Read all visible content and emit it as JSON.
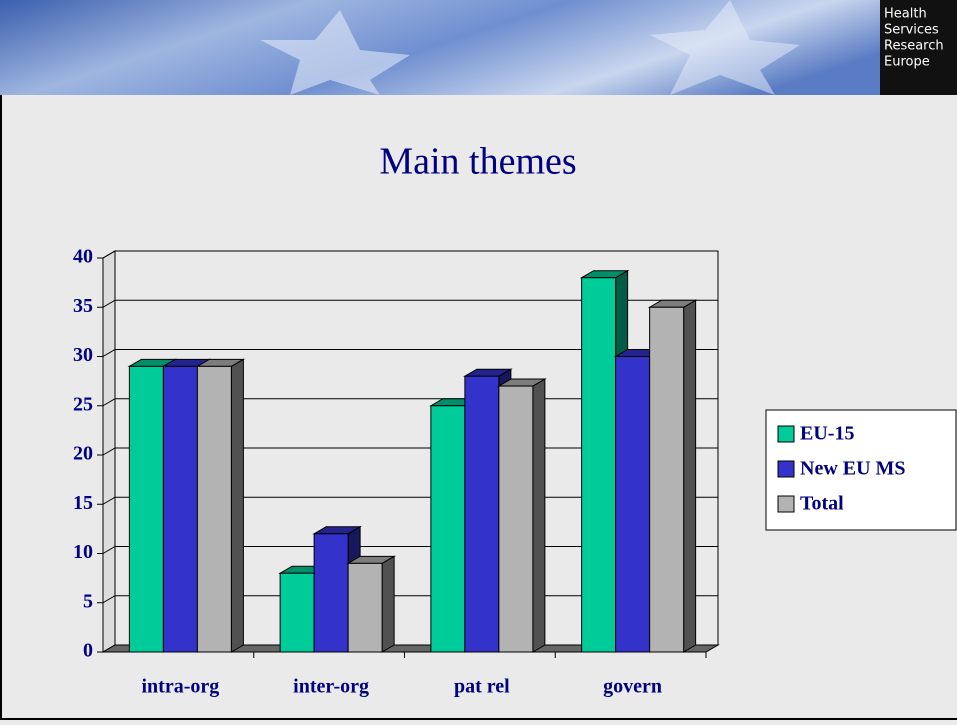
{
  "header": {
    "logo": [
      "Health",
      "Services",
      "Research",
      "Europe"
    ]
  },
  "chart_data": {
    "type": "bar3d",
    "title": "Main themes",
    "categories": [
      "intra-org",
      "inter-org",
      "pat rel",
      "govern"
    ],
    "series": [
      {
        "name": "EU-15",
        "color": "#00cc99",
        "values": [
          29,
          8,
          25,
          38
        ]
      },
      {
        "name": "New EU MS",
        "color": "#3333cc",
        "values": [
          29,
          12,
          28,
          30
        ]
      },
      {
        "name": "Total",
        "color": "#b3b3b3",
        "values": [
          29,
          9,
          27,
          35
        ]
      }
    ],
    "ylim": [
      0,
      40
    ],
    "yticks": [
      0,
      5,
      10,
      15,
      20,
      25,
      30,
      35,
      40
    ],
    "grid": true,
    "legend": "right"
  }
}
